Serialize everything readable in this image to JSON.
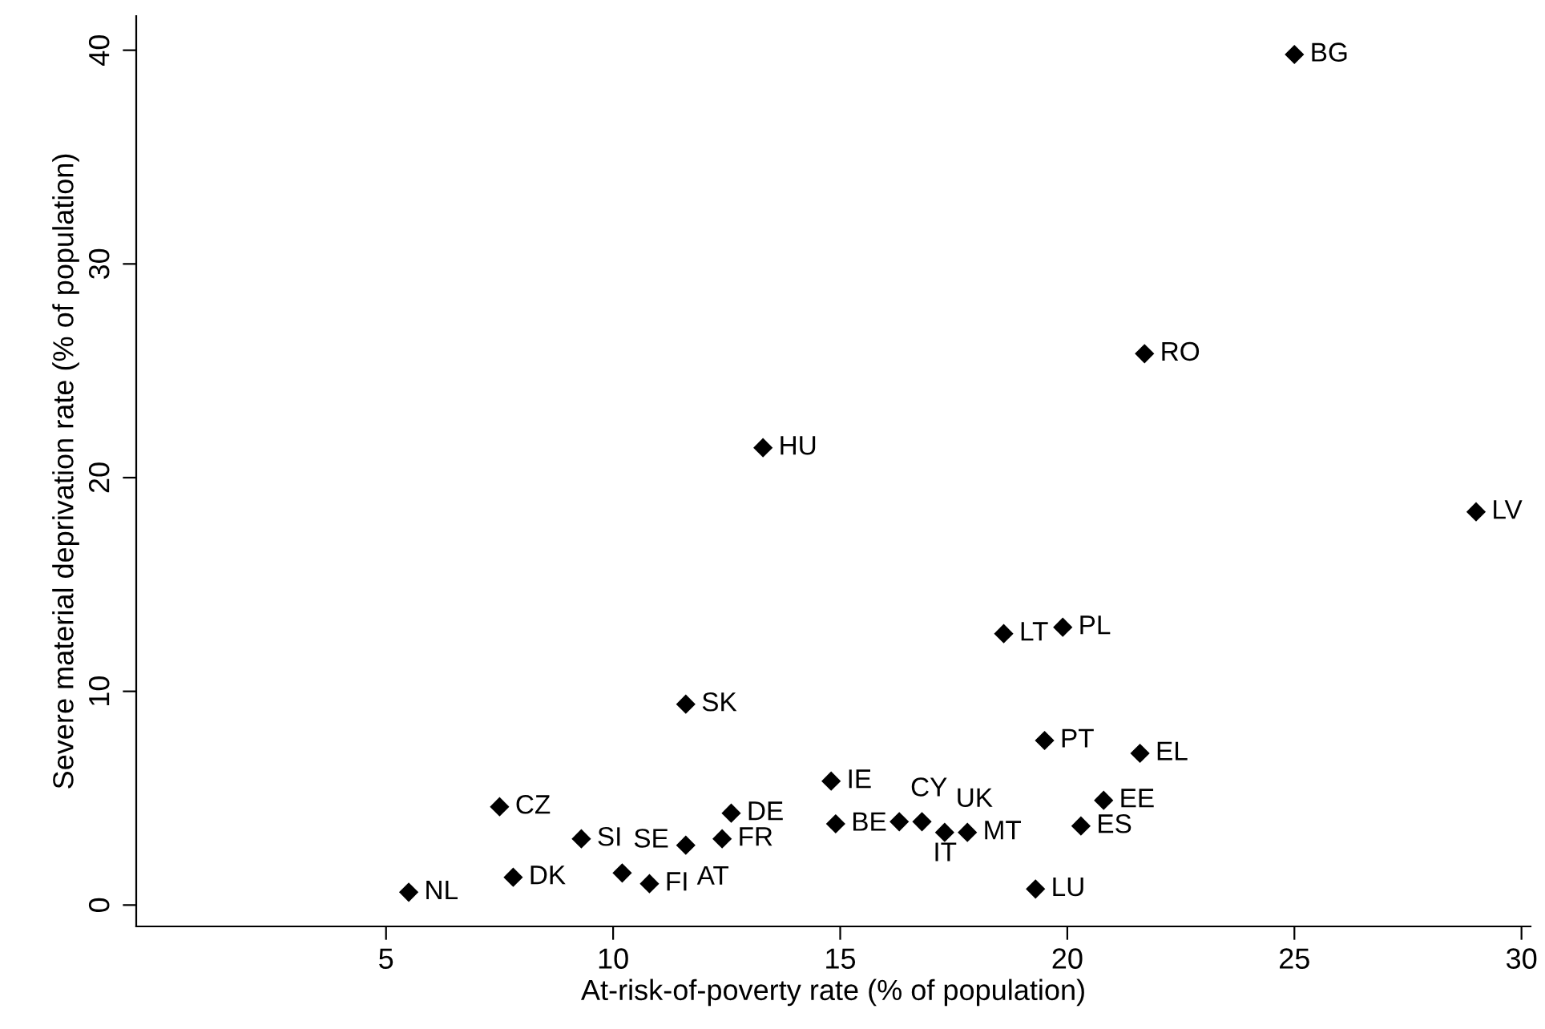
{
  "chart_data": {
    "type": "scatter",
    "xlabel": "At-risk-of-poverty rate (% of population)",
    "ylabel": "Severe material deprivation rate (% of population)",
    "series": [
      {
        "color": "#000000",
        "x": [
          5.5,
          7.8,
          7.5,
          9.3,
          10.2,
          10.8,
          11.6,
          12.4,
          12.6,
          11.6,
          13.3,
          14.8,
          14.9,
          16.3,
          16.8,
          17.3,
          17.8,
          19.3,
          20.3,
          20.8,
          19.5,
          21.6,
          25.0,
          21.7,
          29.0,
          18.6,
          19.9
        ],
        "values": [
          0.6,
          1.3,
          4.6,
          3.1,
          1.5,
          1.0,
          2.8,
          3.1,
          4.3,
          9.4,
          21.4,
          5.8,
          3.8,
          3.9,
          3.9,
          3.4,
          3.4,
          0.75,
          3.7,
          4.9,
          7.7,
          7.1,
          39.8,
          25.8,
          18.4,
          12.7,
          13.0
        ]
      }
    ],
    "annotations": [
      {
        "text": "NL",
        "x": 5.5,
        "y": 0.6
      },
      {
        "text": "DK",
        "x": 7.8,
        "y": 1.3
      },
      {
        "text": "CZ",
        "x": 7.5,
        "y": 4.6
      },
      {
        "text": "SI",
        "x": 9.3,
        "y": 3.1
      },
      {
        "text": "SE",
        "x": 10.2,
        "y": 1.5
      },
      {
        "text": "FI",
        "x": 10.8,
        "y": 1.0
      },
      {
        "text": "AT",
        "x": 11.6,
        "y": 2.8
      },
      {
        "text": "FR",
        "x": 12.4,
        "y": 3.1
      },
      {
        "text": "DE",
        "x": 12.6,
        "y": 4.3
      },
      {
        "text": "SK",
        "x": 11.6,
        "y": 9.4
      },
      {
        "text": "HU",
        "x": 13.3,
        "y": 21.4
      },
      {
        "text": "IE",
        "x": 14.8,
        "y": 5.8
      },
      {
        "text": "BE",
        "x": 14.9,
        "y": 3.8
      },
      {
        "text": "CY",
        "x": 16.3,
        "y": 3.9
      },
      {
        "text": "IT",
        "x": 16.8,
        "y": 3.9
      },
      {
        "text": "UK",
        "x": 17.3,
        "y": 3.4
      },
      {
        "text": "MT",
        "x": 17.8,
        "y": 3.4
      },
      {
        "text": "LU",
        "x": 19.3,
        "y": 0.75
      },
      {
        "text": "ES",
        "x": 20.3,
        "y": 3.7
      },
      {
        "text": "EE",
        "x": 20.8,
        "y": 4.9
      },
      {
        "text": "PT",
        "x": 19.5,
        "y": 7.7
      },
      {
        "text": "EL",
        "x": 21.6,
        "y": 7.1
      },
      {
        "text": "BG",
        "x": 25.0,
        "y": 39.8
      },
      {
        "text": "RO",
        "x": 21.7,
        "y": 25.8
      },
      {
        "text": "LV",
        "x": 29.0,
        "y": 18.4
      },
      {
        "text": "LT",
        "x": 18.6,
        "y": 12.7
      },
      {
        "text": "PL",
        "x": 19.9,
        "y": 13.0
      }
    ],
    "xlim": [
      -0.5,
      30.2
    ],
    "ylim": [
      -1.0,
      41.6
    ],
    "xticks": [
      5,
      10,
      15,
      20,
      25,
      30
    ],
    "yticks": [
      0,
      10,
      20,
      30,
      40
    ],
    "marker": "diamond",
    "grid": false,
    "legend": false
  }
}
